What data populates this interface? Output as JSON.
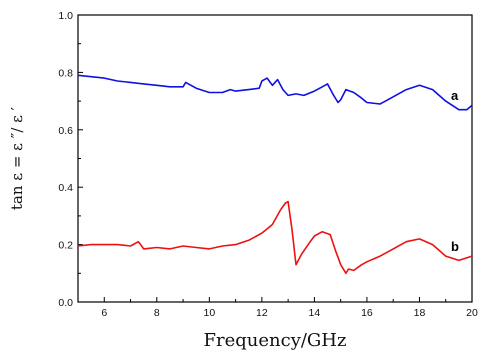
{
  "chart_data": {
    "type": "line",
    "xlabel": "Frequency/GHz",
    "ylabel": "tan ε = ε ″/ ε ′",
    "xlim": [
      5,
      20
    ],
    "ylim": [
      0.0,
      1.0
    ],
    "xticks": [
      6,
      8,
      10,
      12,
      14,
      16,
      18,
      20
    ],
    "yticks": [
      0.0,
      0.2,
      0.4,
      0.6,
      0.8,
      1.0
    ],
    "xtick_labels": [
      "6",
      "8",
      "10",
      "12",
      "14",
      "16",
      "18",
      "20"
    ],
    "ytick_labels": [
      "0.0",
      "0.2",
      "0.4",
      "0.6",
      "0.8",
      "1.0"
    ],
    "grid": false,
    "series": [
      {
        "name": "a",
        "color": "#1010e0",
        "x": [
          5.0,
          5.5,
          6.0,
          6.5,
          7.0,
          7.5,
          8.0,
          8.5,
          9.0,
          9.1,
          9.5,
          10.0,
          10.5,
          10.8,
          11.0,
          11.5,
          11.9,
          12.0,
          12.2,
          12.4,
          12.6,
          12.8,
          13.0,
          13.3,
          13.6,
          14.0,
          14.3,
          14.5,
          14.7,
          14.9,
          15.0,
          15.2,
          15.5,
          15.8,
          16.0,
          16.5,
          17.0,
          17.5,
          18.0,
          18.5,
          19.0,
          19.5,
          19.8,
          20.0
        ],
        "y": [
          0.79,
          0.785,
          0.78,
          0.77,
          0.765,
          0.76,
          0.755,
          0.75,
          0.75,
          0.765,
          0.745,
          0.73,
          0.73,
          0.74,
          0.735,
          0.74,
          0.745,
          0.77,
          0.78,
          0.755,
          0.775,
          0.74,
          0.72,
          0.725,
          0.72,
          0.735,
          0.75,
          0.76,
          0.725,
          0.695,
          0.705,
          0.74,
          0.73,
          0.71,
          0.695,
          0.69,
          0.715,
          0.74,
          0.755,
          0.74,
          0.7,
          0.67,
          0.67,
          0.685
        ]
      },
      {
        "name": "b",
        "color": "#ee1111",
        "x": [
          5.0,
          5.5,
          6.0,
          6.5,
          7.0,
          7.3,
          7.5,
          8.0,
          8.5,
          9.0,
          9.5,
          10.0,
          10.5,
          11.0,
          11.5,
          12.0,
          12.4,
          12.7,
          12.9,
          13.0,
          13.15,
          13.3,
          13.5,
          13.8,
          14.0,
          14.3,
          14.6,
          14.8,
          15.0,
          15.2,
          15.3,
          15.5,
          15.8,
          16.0,
          16.5,
          17.0,
          17.5,
          18.0,
          18.5,
          19.0,
          19.5,
          20.0
        ],
        "y": [
          0.195,
          0.2,
          0.2,
          0.2,
          0.195,
          0.21,
          0.185,
          0.19,
          0.185,
          0.195,
          0.19,
          0.185,
          0.195,
          0.2,
          0.215,
          0.24,
          0.27,
          0.32,
          0.345,
          0.35,
          0.25,
          0.13,
          0.165,
          0.205,
          0.23,
          0.245,
          0.235,
          0.18,
          0.13,
          0.1,
          0.115,
          0.11,
          0.13,
          0.14,
          0.16,
          0.185,
          0.21,
          0.22,
          0.2,
          0.16,
          0.145,
          0.16
        ]
      }
    ]
  }
}
